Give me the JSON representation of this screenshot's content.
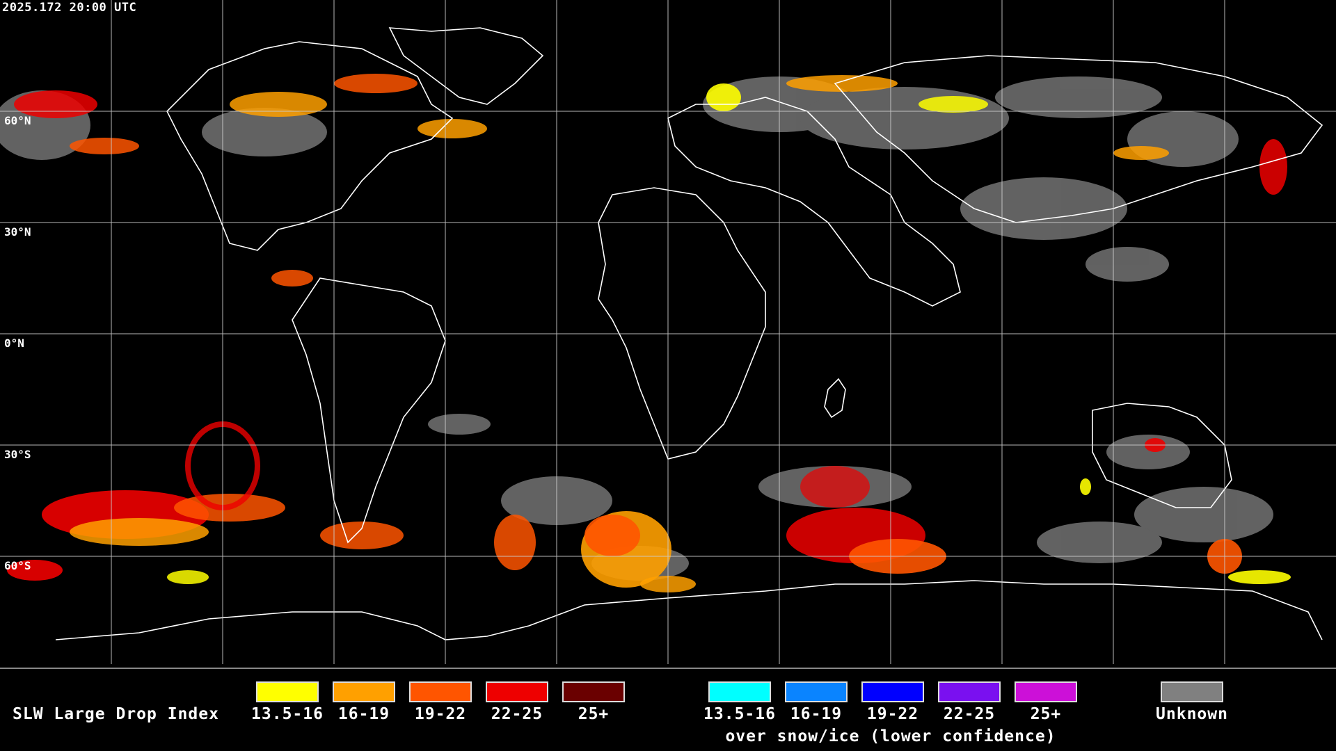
{
  "header": {
    "timestamp": "2025.172 20:00 UTC"
  },
  "latitude_labels": [
    "60°N",
    "30°N",
    "0°N",
    "30°S",
    "60°S"
  ],
  "legend": {
    "title": "SLW Large Drop Index",
    "normal_bins": [
      {
        "label": "13.5-16",
        "color": "#ffff00"
      },
      {
        "label": "16-19",
        "color": "#ffa000"
      },
      {
        "label": "19-22",
        "color": "#ff5500"
      },
      {
        "label": "22-25",
        "color": "#ee0000"
      },
      {
        "label": "25+",
        "color": "#6a0000"
      }
    ],
    "snow_ice_bins": [
      {
        "label": "13.5-16",
        "color": "#00ffff"
      },
      {
        "label": "16-19",
        "color": "#0a84ff"
      },
      {
        "label": "19-22",
        "color": "#0000ff"
      },
      {
        "label": "22-25",
        "color": "#7a10f0"
      },
      {
        "label": "25+",
        "color": "#cc10d8"
      }
    ],
    "snow_ice_note": "over snow/ice (lower confidence)",
    "unknown": {
      "label": "Unknown",
      "color": "#808080"
    }
  }
}
